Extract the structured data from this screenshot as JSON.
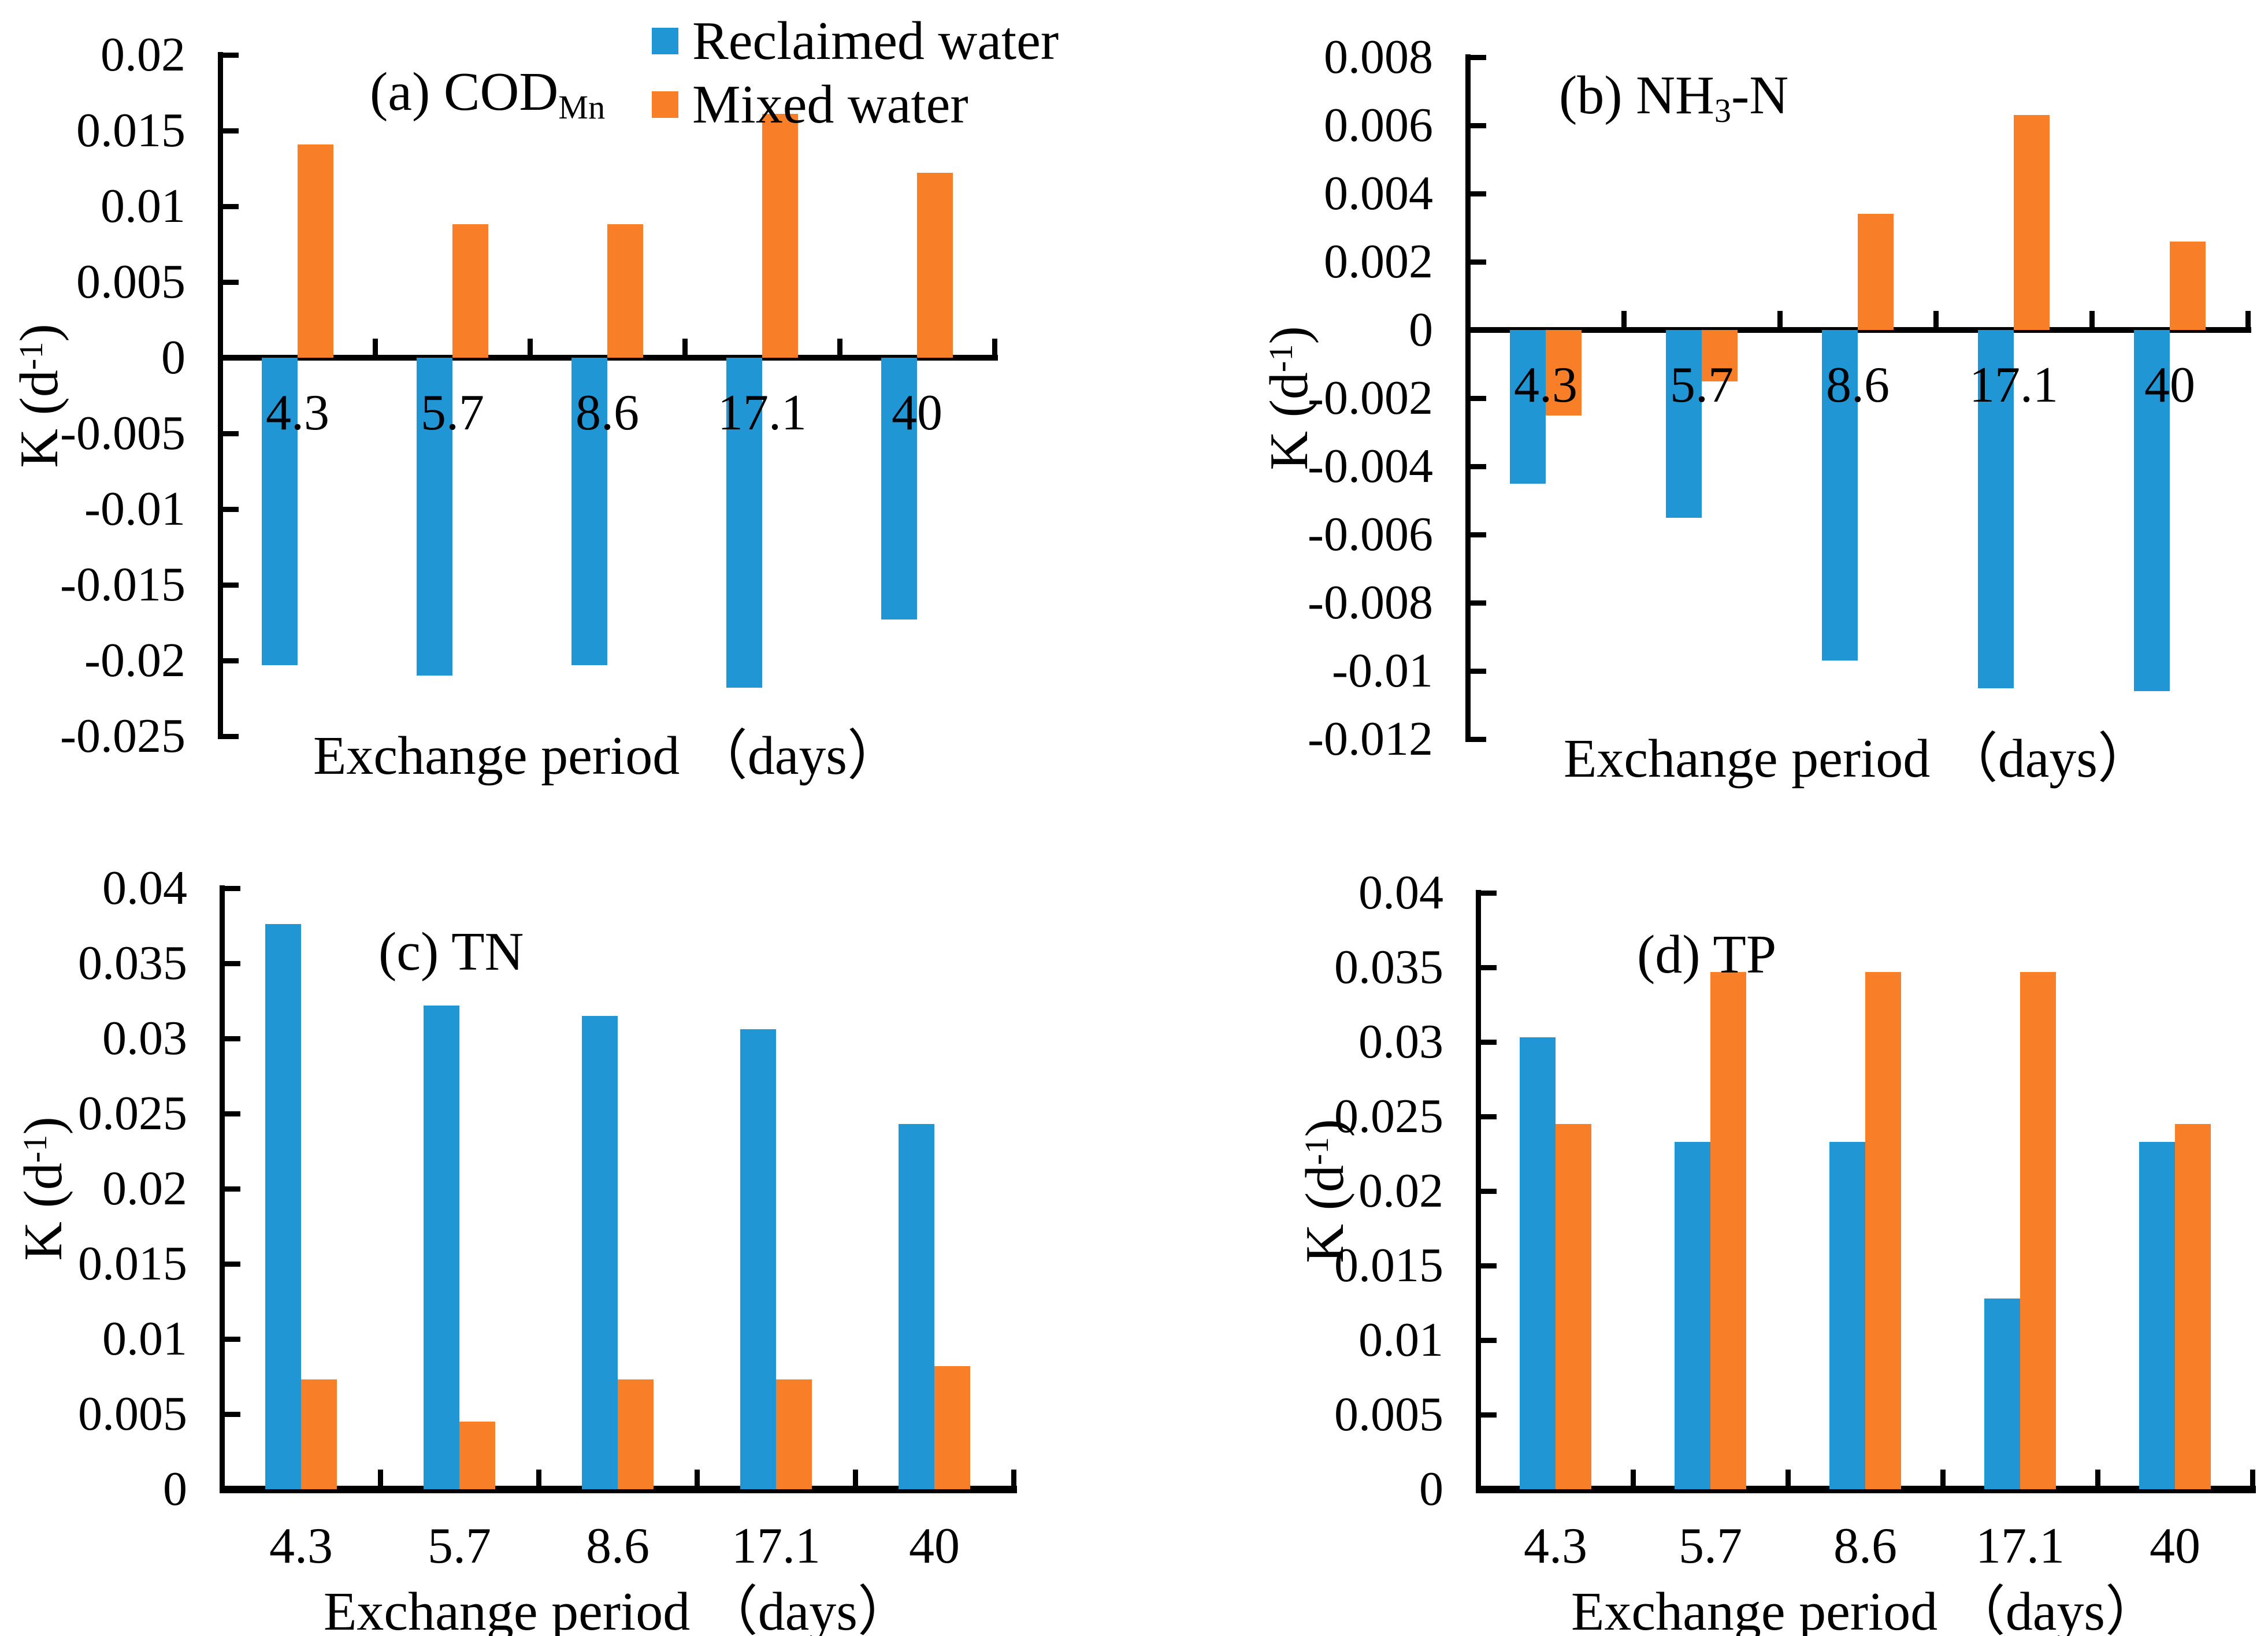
{
  "figure_title": "",
  "colors": {
    "reclaimed": "#2196d5",
    "mixed": "#f87e28",
    "axis": "#000000",
    "background": "#ffffff"
  },
  "legend": {
    "items": [
      {
        "series": "reclaimed",
        "label": "Reclaimed water"
      },
      {
        "series": "mixed",
        "label": "Mixed water"
      }
    ]
  },
  "y_axis_label": {
    "prefix": "K (d",
    "sup": "-1",
    "suffix": ")"
  },
  "x_axis_label": "Exchange period （days）",
  "chart_data": [
    {
      "id": "a",
      "type": "bar",
      "title": {
        "prefix": "(a) COD",
        "sub": "Mn",
        "suffix": ""
      },
      "categories": [
        "4.3",
        "5.7",
        "8.6",
        "17.1",
        "40"
      ],
      "series": [
        {
          "name": "Reclaimed water",
          "color_key": "reclaimed",
          "values": [
            -0.0203,
            -0.021,
            -0.0203,
            -0.0218,
            -0.0173
          ]
        },
        {
          "name": "Mixed water",
          "color_key": "mixed",
          "values": [
            0.0141,
            0.0088,
            0.0088,
            0.0161,
            0.0122
          ]
        }
      ],
      "ylim": [
        -0.025,
        0.02
      ],
      "y_tick_step": 0.005,
      "y_ticks": [
        "0.02",
        "0.015",
        "0.01",
        "0.005",
        "0",
        "-0.005",
        "-0.01",
        "-0.015",
        "-0.02",
        "-0.025"
      ],
      "xlabel": "Exchange period （days）",
      "ylabel": "K (d-1)",
      "grid": false,
      "legend_position": "top-center"
    },
    {
      "id": "b",
      "type": "bar",
      "title": {
        "prefix": "(b) NH",
        "sub": "3",
        "suffix": "-N"
      },
      "categories": [
        "4.3",
        "5.7",
        "8.6",
        "17.1",
        "40"
      ],
      "series": [
        {
          "name": "Reclaimed water",
          "color_key": "reclaimed",
          "values": [
            -0.0045,
            -0.0055,
            -0.0097,
            -0.0105,
            -0.0106
          ]
        },
        {
          "name": "Mixed water",
          "color_key": "mixed",
          "values": [
            -0.0025,
            -0.0015,
            0.0034,
            0.0063,
            0.0026
          ]
        }
      ],
      "ylim": [
        -0.012,
        0.008
      ],
      "y_tick_step": 0.002,
      "y_ticks": [
        "0.008",
        "0.006",
        "0.004",
        "0.002",
        "0",
        "-0.002",
        "-0.004",
        "-0.006",
        "-0.008",
        "-0.01",
        "-0.012"
      ],
      "xlabel": "Exchange period （days）",
      "ylabel": "K (d-1)",
      "grid": false,
      "legend_position": "none"
    },
    {
      "id": "c",
      "type": "bar",
      "title": {
        "prefix": "(c) TN",
        "sub": "",
        "suffix": ""
      },
      "categories": [
        "4.3",
        "5.7",
        "8.6",
        "17.1",
        "40"
      ],
      "series": [
        {
          "name": "Reclaimed water",
          "color_key": "reclaimed",
          "values": [
            0.0376,
            0.0322,
            0.0315,
            0.0306,
            0.0243
          ]
        },
        {
          "name": "Mixed water",
          "color_key": "mixed",
          "values": [
            0.0073,
            0.0045,
            0.0073,
            0.0073,
            0.0082
          ]
        }
      ],
      "ylim": [
        0,
        0.04
      ],
      "y_tick_step": 0.005,
      "y_ticks": [
        "0.04",
        "0.035",
        "0.03",
        "0.025",
        "0.02",
        "0.015",
        "0.01",
        "0.005",
        "0"
      ],
      "xlabel": "Exchange period （days）",
      "ylabel": "K (d-1)",
      "grid": false,
      "legend_position": "none"
    },
    {
      "id": "d",
      "type": "bar",
      "title": {
        "prefix": "(d) TP",
        "sub": "",
        "suffix": ""
      },
      "categories": [
        "4.3",
        "5.7",
        "8.6",
        "17.1",
        "40"
      ],
      "series": [
        {
          "name": "Reclaimed water",
          "color_key": "reclaimed",
          "values": [
            0.0303,
            0.0233,
            0.0233,
            0.0128,
            0.0233
          ]
        },
        {
          "name": "Mixed water",
          "color_key": "mixed",
          "values": [
            0.0245,
            0.0347,
            0.0347,
            0.0347,
            0.0245
          ]
        }
      ],
      "ylim": [
        0,
        0.04
      ],
      "y_tick_step": 0.005,
      "y_ticks": [
        "0.04",
        "0.035",
        "0.03",
        "0.025",
        "0.02",
        "0.015",
        "0.01",
        "0.005",
        "0"
      ],
      "xlabel": "Exchange period （days）",
      "ylabel": "K (d-1)",
      "grid": false,
      "legend_position": "none"
    }
  ]
}
